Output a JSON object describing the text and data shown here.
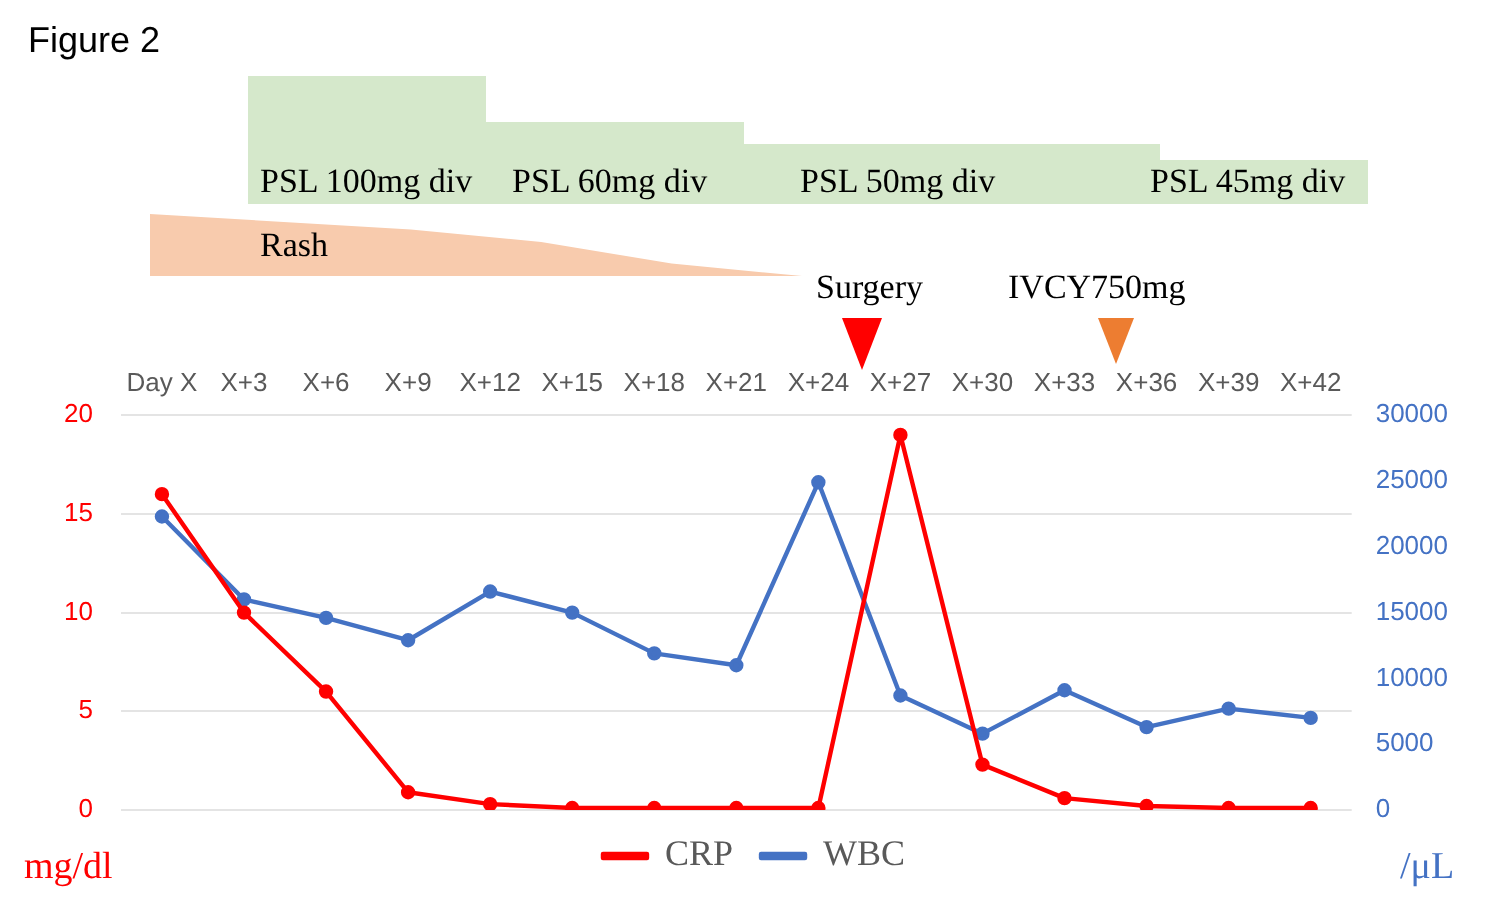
{
  "chart_data": {
    "type": "line",
    "title": "Figure 2",
    "ylabel": "mg/dl",
    "y2label": "/μL",
    "categories": [
      "Day X",
      "X+3",
      "X+6",
      "X+9",
      "X+12",
      "X+15",
      "X+18",
      "X+21",
      "X+24",
      "X+27",
      "X+30",
      "X+33",
      "X+36",
      "X+39",
      "X+42"
    ],
    "series": [
      {
        "name": "CRP",
        "color": "#ff0000",
        "values": [
          16,
          10,
          6,
          0.9,
          0.3,
          0.1,
          0.1,
          0.1,
          0.1,
          19,
          2.3,
          0.6,
          0.2,
          0.1,
          0.1
        ]
      },
      {
        "name": "WBC",
        "color": "#4472c4",
        "axis": "y2",
        "values": [
          22300,
          16000,
          14600,
          12900,
          16600,
          15000,
          11900,
          11000,
          24900,
          8700,
          5800,
          9100,
          6300,
          7700,
          7000
        ]
      }
    ],
    "ylim": [
      0,
      20
    ],
    "yticks": [
      0,
      5,
      10,
      15,
      20
    ],
    "y2lim": [
      0,
      30000
    ],
    "y2ticks": [
      0,
      5000,
      10000,
      15000,
      20000,
      25000,
      30000
    ],
    "grid": "y",
    "legend": "bottom",
    "marker": "circle",
    "line_style": "solid",
    "annotations": [
      "PSL 100mg div",
      "PSL 60mg div",
      "PSL 50mg div",
      "PSL 45mg div",
      "Rash",
      "Surgery",
      "IVCY750mg"
    ]
  }
}
